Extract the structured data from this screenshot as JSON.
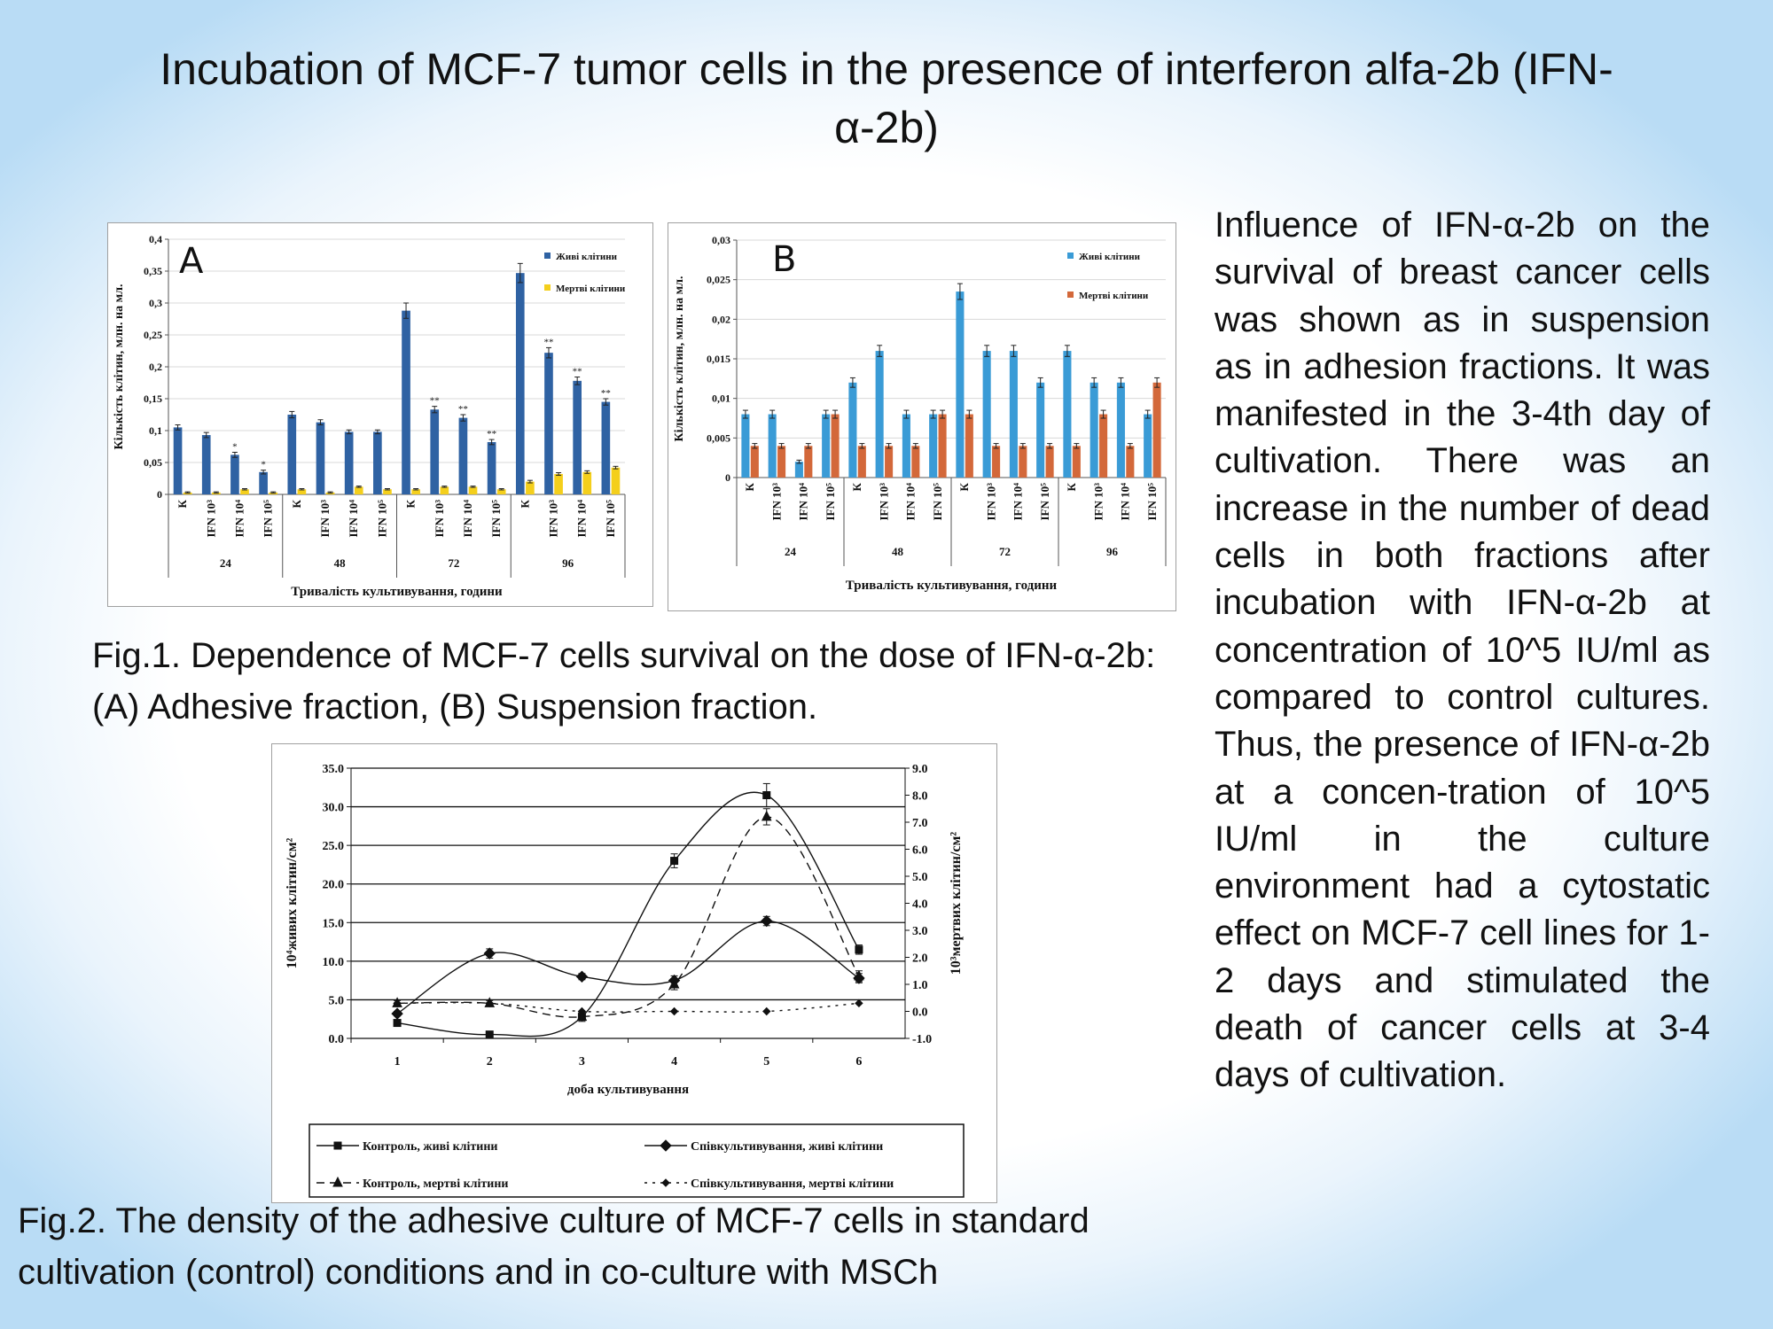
{
  "title": "Incubation of MCF-7 tumor cells in the presence of interferon alfa-2b (IFN-α-2b)",
  "body_text": "Influence of IFN-α-2b on the survival of breast cancer cells was shown as in suspension as in adhesion fractions. It was manifested in the 3-4th day of cultivation. There was an increase in the number of dead cells in both fractions after incubation with IFN-α-2b at concentration of 10^5 IU/ml as compared to control cultures. Thus, the presence of IFN-α-2b at a concen-tration of 10^5 IU/ml in the culture environment had a cytostatic effect on MCF-7 cell lines for 1-2 days and stimulated the death of cancer cells at 3-4 days of cultivation.",
  "figure_captions": [
    "Fig.1. Dependence of MCF-7 cells survival on the dose of IFN-α-2b: (A) Adhesive fraction, (B) Suspension fraction.",
    "Fig.2. The density of the adhesive culture of MCF-7 cells in standard cultivation (control) conditions and in co-culture with MSCh"
  ],
  "chart_data": [
    {
      "type": "bar",
      "panel_label": "A",
      "ylabel": "Кількість клітин, млн. на мл.",
      "xlabel": "Тривалість культивування, години",
      "categories": [
        "К",
        "IFN 10³",
        "IFN 10⁴",
        "IFN 10⁵",
        "К",
        "IFN 10³",
        "IFN 10⁴",
        "IFN 10⁵",
        "К",
        "IFN 10³",
        "IFN 10⁴",
        "IFN 10⁵",
        "К",
        "IFN 10³",
        "IFN 10⁴",
        "IFN 10⁵"
      ],
      "groups": [
        "24",
        "48",
        "72",
        "96"
      ],
      "series": [
        {
          "name": "Живі клітини",
          "color": "#2f62a3",
          "values": [
            0.105,
            0.093,
            0.062,
            0.035,
            0.125,
            0.113,
            0.098,
            0.098,
            0.288,
            0.133,
            0.12,
            0.082,
            0.347,
            0.222,
            0.178,
            0.145
          ],
          "errors": [
            0.004,
            0.004,
            0.004,
            0.003,
            0.005,
            0.004,
            0.003,
            0.003,
            0.012,
            0.005,
            0.005,
            0.004,
            0.015,
            0.008,
            0.006,
            0.005
          ],
          "annotations": [
            null,
            null,
            "*",
            "*",
            null,
            null,
            null,
            null,
            null,
            "**",
            "**",
            "**",
            null,
            "**",
            "**",
            "**"
          ]
        },
        {
          "name": "Мертві клітини",
          "color": "#f4cf1c",
          "values": [
            0.003,
            0.003,
            0.008,
            0.003,
            0.008,
            0.003,
            0.012,
            0.008,
            0.008,
            0.012,
            0.012,
            0.008,
            0.02,
            0.032,
            0.035,
            0.042
          ],
          "errors": [
            0.001,
            0.001,
            0.001,
            0.001,
            0.001,
            0.001,
            0.001,
            0.001,
            0.001,
            0.001,
            0.001,
            0.001,
            0.002,
            0.002,
            0.002,
            0.002
          ]
        }
      ],
      "ylim": [
        0,
        0.4
      ],
      "yticks": [
        0,
        {
          "value": 0.05,
          "label": "0,05"
        },
        {
          "value": 0.1,
          "label": "0,1"
        },
        {
          "value": 0.15,
          "label": "0,15"
        },
        {
          "value": 0.2,
          "label": "0,2"
        },
        {
          "value": 0.25,
          "label": "0,25"
        },
        {
          "value": 0.3,
          "label": "0,3"
        },
        {
          "value": 0.35,
          "label": "0,35"
        },
        {
          "value": 0.4,
          "label": "0,4"
        }
      ],
      "grid": true,
      "legend": "top-right"
    },
    {
      "type": "bar",
      "panel_label": "B",
      "ylabel": "Кількість клітин, млн. на мл.",
      "xlabel": "Тривалість культивування, години",
      "categories": [
        "К",
        "IFN 10³",
        "IFN 10⁴",
        "IFN 10⁵",
        "К",
        "IFN 10³",
        "IFN 10⁴",
        "IFN 10⁵",
        "К",
        "IFN 10³",
        "IFN 10⁴",
        "IFN 10⁵",
        "К",
        "IFN 10³",
        "IFN 10⁴",
        "IFN 10⁵"
      ],
      "groups": [
        "24",
        "48",
        "72",
        "96"
      ],
      "series": [
        {
          "name": "Живі клітини",
          "color": "#3a9bd6",
          "values": [
            0.008,
            0.008,
            0.002,
            0.008,
            0.012,
            0.016,
            0.008,
            0.008,
            0.0235,
            0.016,
            0.016,
            0.012,
            0.016,
            0.012,
            0.012,
            0.008
          ],
          "errors": [
            0.0005,
            0.0005,
            0.0002,
            0.0005,
            0.0006,
            0.0007,
            0.0005,
            0.0005,
            0.001,
            0.0007,
            0.0007,
            0.0006,
            0.0007,
            0.0006,
            0.0006,
            0.0005
          ]
        },
        {
          "name": "Мертві клітини",
          "color": "#d3683a",
          "values": [
            0.004,
            0.004,
            0.004,
            0.008,
            0.004,
            0.004,
            0.004,
            0.008,
            0.008,
            0.004,
            0.004,
            0.004,
            0.004,
            0.008,
            0.004,
            0.012
          ],
          "errors": [
            0.0003,
            0.0003,
            0.0003,
            0.0005,
            0.0003,
            0.0003,
            0.0003,
            0.0005,
            0.0005,
            0.0003,
            0.0003,
            0.0003,
            0.0003,
            0.0005,
            0.0003,
            0.0006
          ]
        }
      ],
      "ylim": [
        0,
        0.03
      ],
      "yticks": [
        0,
        {
          "value": 0.005,
          "label": "0,005"
        },
        {
          "value": 0.01,
          "label": "0,01"
        },
        {
          "value": 0.015,
          "label": "0,015"
        },
        {
          "value": 0.02,
          "label": "0,02"
        },
        {
          "value": 0.025,
          "label": "0,025"
        },
        {
          "value": 0.03,
          "label": "0,03"
        }
      ],
      "grid": true,
      "legend": "top-right"
    },
    {
      "type": "line",
      "ylabel": "10⁴живих клітин/см²",
      "y2label": "10³мертвих клітин/см²",
      "xlabel": "доба культивування",
      "categories": [
        "1",
        "2",
        "3",
        "4",
        "5",
        "6"
      ],
      "series": [
        {
          "name": "Контроль, живі клітини",
          "color": "#111111",
          "marker": "square",
          "dash": "solid",
          "values": [
            2.0,
            0.5,
            2.8,
            23.0,
            31.5,
            11.5
          ],
          "errors": [
            0.3,
            0.3,
            0.6,
            0.9,
            1.5,
            0.6
          ]
        },
        {
          "name": "Співкультивування, живі клітини",
          "color": "#111111",
          "marker": "diamond",
          "dash": "solid",
          "values": [
            3.2,
            11.0,
            8.0,
            7.5,
            15.2,
            7.8
          ],
          "errors": [
            0.3,
            0.6,
            0.4,
            0.6,
            0.6,
            0.6
          ]
        },
        {
          "name": "Контроль, мертві клітини",
          "color": "#111111",
          "marker": "triangle",
          "dash": "dashed",
          "axis": "y2",
          "values": [
            0.3,
            0.3,
            -0.2,
            1.0,
            7.2,
            1.3
          ],
          "errors": [
            0.1,
            0.1,
            0.1,
            0.2,
            0.3,
            0.2
          ]
        },
        {
          "name": "Співкультивування, мертві клітини",
          "color": "#111111",
          "marker": "dot",
          "dash": "dotted",
          "axis": "y2",
          "values": [
            0.3,
            0.3,
            0.0,
            0.0,
            0.0,
            0.3
          ]
        }
      ],
      "ylim": [
        0,
        35
      ],
      "yticks": [
        {
          "value": 0,
          "label": "0.0"
        },
        {
          "value": 5,
          "label": "5.0"
        },
        {
          "value": 10,
          "label": "10.0"
        },
        {
          "value": 15,
          "label": "15.0"
        },
        {
          "value": 20,
          "label": "20.0"
        },
        {
          "value": 25,
          "label": "25.0"
        },
        {
          "value": 30,
          "label": "30.0"
        },
        {
          "value": 35,
          "label": "35.0"
        }
      ],
      "y2lim": [
        -1,
        9
      ],
      "y2ticks": [
        {
          "value": -1,
          "label": "-1.0"
        },
        {
          "value": 0,
          "label": "0.0"
        },
        {
          "value": 1,
          "label": "1.0"
        },
        {
          "value": 2,
          "label": "2.0"
        },
        {
          "value": 3,
          "label": "3.0"
        },
        {
          "value": 4,
          "label": "4.0"
        },
        {
          "value": 5,
          "label": "5.0"
        },
        {
          "value": 6,
          "label": "6.0"
        },
        {
          "value": 7,
          "label": "7.0"
        },
        {
          "value": 8,
          "label": "8.0"
        },
        {
          "value": 9,
          "label": "9.0"
        }
      ],
      "grid": true,
      "legend": "bottom"
    }
  ]
}
